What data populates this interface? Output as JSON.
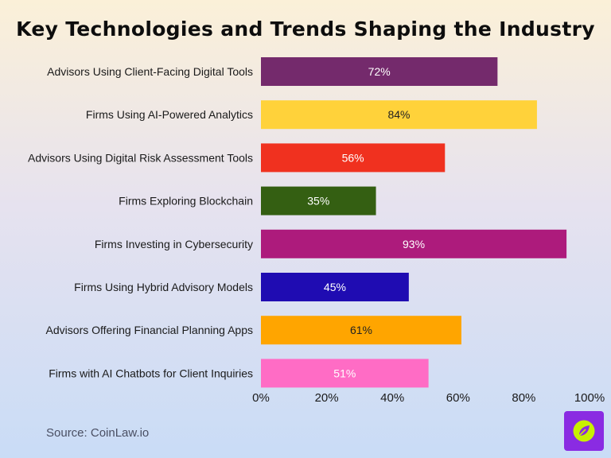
{
  "title": "Key Technologies and Trends Shaping the Industry",
  "source": "Source: CoinLaw.io",
  "chart_data": {
    "type": "bar",
    "orientation": "horizontal",
    "title": "Key Technologies and Trends Shaping the Industry",
    "xlabel": "",
    "ylabel": "",
    "xlim": [
      0,
      100
    ],
    "x_ticks": [
      "0%",
      "20%",
      "40%",
      "60%",
      "80%",
      "100%"
    ],
    "grid": false,
    "categories": [
      "Advisors Using Client-Facing Digital Tools",
      "Firms Using AI-Powered Analytics",
      "Advisors Using Digital Risk Assessment Tools",
      "Firms Exploring Blockchain",
      "Firms Investing in Cybersecurity",
      "Firms Using Hybrid Advisory Models",
      "Advisors Offering Financial Planning Apps",
      "Firms with AI Chatbots for Client Inquiries"
    ],
    "values": [
      72,
      84,
      56,
      35,
      93,
      45,
      61,
      51
    ],
    "value_labels": [
      "72%",
      "84%",
      "56%",
      "35%",
      "93%",
      "45%",
      "61%",
      "51%"
    ],
    "colors": [
      "#742a6c",
      "#ffd23a",
      "#f0311f",
      "#345f12",
      "#ad1b7c",
      "#1f0cb2",
      "#ffa500",
      "#ff6cc5"
    ],
    "label_colors": [
      "#ffffff",
      "#222222",
      "#ffffff",
      "#ffffff",
      "#ffffff",
      "#ffffff",
      "#222222",
      "#ffffff"
    ]
  },
  "logo": {
    "name": "leaf-icon",
    "color": "#8a2be2",
    "accent": "#c8f000"
  }
}
